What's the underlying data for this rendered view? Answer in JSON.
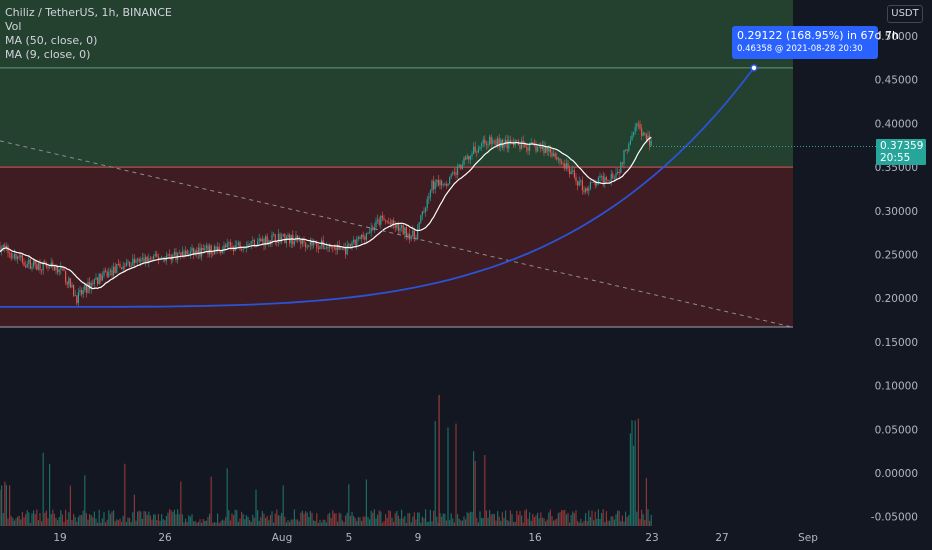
{
  "legend": {
    "symbol": "Chiliz / TetherUS, 1h, BINANCE",
    "vol": "Vol",
    "ma50": "MA (50, close, 0)",
    "ma9": "MA (9, close, 0)"
  },
  "currency_button": "USDT",
  "price_tag": {
    "price": "0.37359",
    "countdown": "20:55"
  },
  "measure_tooltip": {
    "line1": "0.29122 (168.95%) in 67d 7h",
    "line2": "0.46358 @ 2021-08-28  20:30"
  },
  "colors": {
    "background": "#131722",
    "target_zone": "#24402f",
    "stop_zone": "#3e1c22",
    "up": "#26a69a",
    "down": "#ef5350",
    "curve": "#2a53d6",
    "ma_line": "#ffffff"
  },
  "chart_data": {
    "type": "candlestick",
    "y_axis": {
      "ticks": [
        "0.50000",
        "0.45000",
        "0.40000",
        "0.35000",
        "0.30000",
        "0.25000",
        "0.20000",
        "0.15000",
        "0.10000",
        "0.05000",
        "0.00000",
        "-0.05000"
      ],
      "range": [
        -0.058,
        0.537
      ]
    },
    "x_axis": {
      "ticks": [
        "19",
        "26",
        "Aug",
        "5",
        "9",
        "16",
        "23",
        "27",
        "Sep"
      ]
    },
    "position_tool": {
      "entry": 0.35,
      "target": 0.46358,
      "stop": 0.167
    },
    "current_price": 0.37359,
    "price_path": [
      {
        "x": "Jul 15",
        "y": 0.265
      },
      {
        "x": "Jul 17",
        "y": 0.24
      },
      {
        "x": "Jul 19",
        "y": 0.235
      },
      {
        "x": "Jul 20",
        "y": 0.2
      },
      {
        "x": "Jul 21",
        "y": 0.22
      },
      {
        "x": "Jul 23",
        "y": 0.24
      },
      {
        "x": "Jul 26",
        "y": 0.25
      },
      {
        "x": "Jul 28",
        "y": 0.255
      },
      {
        "x": "Aug 1",
        "y": 0.27
      },
      {
        "x": "Aug 3",
        "y": 0.262
      },
      {
        "x": "Aug 5",
        "y": 0.255
      },
      {
        "x": "Aug 7",
        "y": 0.29
      },
      {
        "x": "Aug 9",
        "y": 0.27
      },
      {
        "x": "Aug 10",
        "y": 0.33
      },
      {
        "x": "Aug 11",
        "y": 0.335
      },
      {
        "x": "Aug 13",
        "y": 0.38
      },
      {
        "x": "Aug 15",
        "y": 0.375
      },
      {
        "x": "Aug 17",
        "y": 0.37
      },
      {
        "x": "Aug 19",
        "y": 0.325
      },
      {
        "x": "Aug 21",
        "y": 0.345
      },
      {
        "x": "Aug 22",
        "y": 0.4
      },
      {
        "x": "Aug 23",
        "y": 0.375
      }
    ]
  }
}
